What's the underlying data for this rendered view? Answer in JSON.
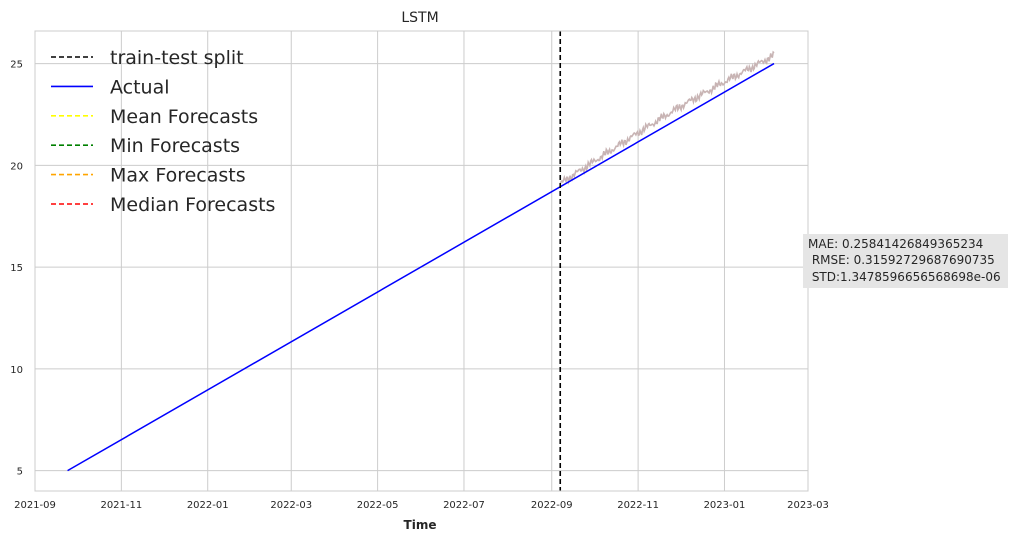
{
  "chart_data": {
    "type": "line",
    "title": "LSTM",
    "xlabel": "Time",
    "ylabel": "",
    "xlim": [
      "2021-09-01",
      "2023-03-01"
    ],
    "ylim": [
      4,
      26.6
    ],
    "grid": true,
    "legend_position": "top-left",
    "x_ticks": [
      "2021-09",
      "2021-11",
      "2022-01",
      "2022-03",
      "2022-05",
      "2022-07",
      "2022-09",
      "2022-11",
      "2023-01",
      "2023-03"
    ],
    "y_ticks": [
      5,
      10,
      15,
      20,
      25
    ],
    "split": {
      "name": "train-test split",
      "x": "2022-09-07",
      "color": "#000000",
      "style": "dashed"
    },
    "series": [
      {
        "name": "Actual",
        "color": "#0000ff",
        "style": "solid",
        "x": [
          "2021-09-24",
          "2023-02-05"
        ],
        "y": [
          5,
          25
        ]
      },
      {
        "name": "Mean Forecasts",
        "color": "#ffff00",
        "style": "dashed",
        "x": [
          "2022-09-07",
          "2023-02-05"
        ],
        "y": [
          19.1,
          25.3
        ]
      },
      {
        "name": "Min Forecasts",
        "color": "#008000",
        "style": "dashed",
        "x": [
          "2022-09-07",
          "2023-02-05"
        ],
        "y": [
          19.1,
          25.3
        ]
      },
      {
        "name": "Max Forecasts",
        "color": "#ffa500",
        "style": "dashed",
        "x": [
          "2022-09-07",
          "2023-02-05"
        ],
        "y": [
          19.1,
          25.3
        ]
      },
      {
        "name": "Median Forecasts",
        "color": "#ff0000",
        "style": "dashed",
        "x": [
          "2022-09-07",
          "2023-02-05"
        ],
        "y": [
          19.1,
          25.3
        ]
      }
    ],
    "forecast_band": {
      "color": "#c8b4b4",
      "x": [
        "2022-09-07",
        "2022-10-01",
        "2022-11-01",
        "2022-12-01",
        "2023-01-01",
        "2023-02-05"
      ],
      "y": [
        19.1,
        20.2,
        21.6,
        22.9,
        24.1,
        25.4
      ]
    },
    "annotation": {
      "lines": [
        "MAE: 0.25841426849365234",
        " RMSE: 0.31592729687690735",
        " STD:1.3478596656568698e-06"
      ],
      "background": "#e5e5e5"
    }
  }
}
